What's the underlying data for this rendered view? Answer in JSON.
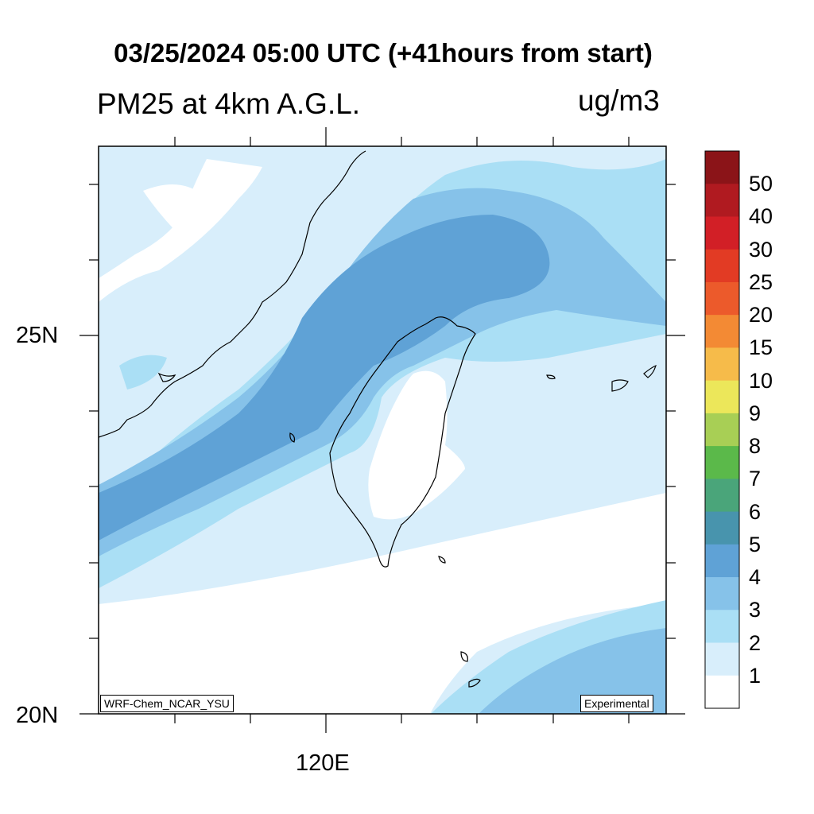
{
  "header": {
    "title": "03/25/2024 05:00 UTC (+41hours from start)",
    "field_label": "PM25 at 4km A.G.L.",
    "units": "ug/m3"
  },
  "axes": {
    "lat_labels": [
      "25N",
      "20N"
    ],
    "lon_labels": [
      "120E"
    ]
  },
  "annotations": {
    "model": "WRF-Chem_NCAR_YSU",
    "status": "Experimental"
  },
  "colorbar": {
    "labels": [
      "50",
      "40",
      "30",
      "25",
      "20",
      "15",
      "10",
      "9",
      "8",
      "7",
      "6",
      "5",
      "4",
      "3",
      "2",
      "1"
    ],
    "colors": [
      "#8b1418",
      "#b01a20",
      "#d21f26",
      "#e23b24",
      "#ec5a2b",
      "#f38a34",
      "#f6bb4a",
      "#ece75a",
      "#a8cf55",
      "#5bb94a",
      "#4aa57a",
      "#4894ad",
      "#5fa2d6",
      "#86c2e9",
      "#aadff5",
      "#d8eefb",
      "#ffffff"
    ]
  },
  "map": {
    "region": "Taiwan and Taiwan Strait",
    "lat_range": [
      20,
      27.5
    ],
    "lon_range": [
      117.5,
      125
    ]
  }
}
